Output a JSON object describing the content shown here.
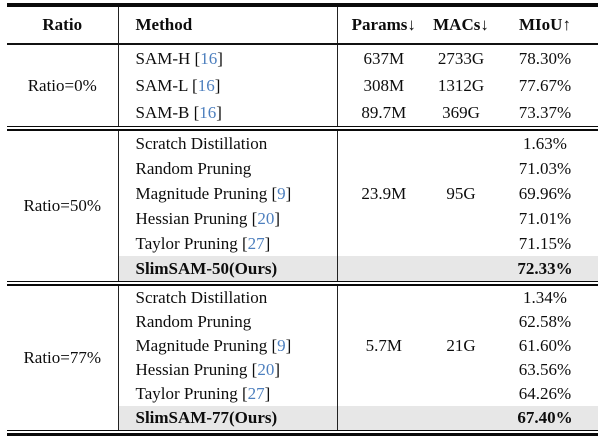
{
  "table": {
    "columns": [
      {
        "key": "ratio",
        "label": "Ratio"
      },
      {
        "key": "method",
        "label": "Method"
      },
      {
        "key": "params",
        "label": "Params↓"
      },
      {
        "key": "macs",
        "label": "MACs↓"
      },
      {
        "key": "miou",
        "label": "MIoU↑"
      }
    ],
    "cite_brackets": [
      "[",
      "]"
    ],
    "groups": [
      {
        "ratio": "Ratio=0%",
        "rows": [
          {
            "method": "SAM-H",
            "cite": "16",
            "params": "637M",
            "macs": "2733G",
            "miou": "78.30%",
            "ours": false
          },
          {
            "method": "SAM-L",
            "cite": "16",
            "params": "308M",
            "macs": "1312G",
            "miou": "77.67%",
            "ours": false
          },
          {
            "method": "SAM-B",
            "cite": "16",
            "params": "89.7M",
            "macs": "369G",
            "miou": "73.37%",
            "ours": false
          }
        ]
      },
      {
        "ratio": "Ratio=50%",
        "rows": [
          {
            "method": "Scratch Distillation",
            "cite": null,
            "params": "",
            "macs": "",
            "miou": "1.63%",
            "ours": false
          },
          {
            "method": "Random Pruning",
            "cite": null,
            "params": "",
            "macs": "",
            "miou": "71.03%",
            "ours": false
          },
          {
            "method": "Magnitude Pruning",
            "cite": "9",
            "params": "23.9M",
            "macs": "95G",
            "miou": "69.96%",
            "ours": false
          },
          {
            "method": "Hessian Pruning",
            "cite": "20",
            "params": "",
            "macs": "",
            "miou": "71.01%",
            "ours": false
          },
          {
            "method": "Taylor Pruning",
            "cite": "27",
            "params": "",
            "macs": "",
            "miou": "71.15%",
            "ours": false
          },
          {
            "method": "SlimSAM-50(Ours)",
            "cite": null,
            "params": "",
            "macs": "",
            "miou": "72.33%",
            "ours": true
          }
        ]
      },
      {
        "ratio": "Ratio=77%",
        "rows": [
          {
            "method": "Scratch Distillation",
            "cite": null,
            "params": "",
            "macs": "",
            "miou": "1.34%",
            "ours": false
          },
          {
            "method": "Random Pruning",
            "cite": null,
            "params": "",
            "macs": "",
            "miou": "62.58%",
            "ours": false
          },
          {
            "method": "Magnitude Pruning",
            "cite": "9",
            "params": "5.7M",
            "macs": "21G",
            "miou": "61.60%",
            "ours": false
          },
          {
            "method": "Hessian Pruning",
            "cite": "20",
            "params": "",
            "macs": "",
            "miou": "63.56%",
            "ours": false
          },
          {
            "method": "Taylor Pruning",
            "cite": "27",
            "params": "",
            "macs": "",
            "miou": "64.26%",
            "ours": false
          },
          {
            "method": "SlimSAM-77(Ours)",
            "cite": null,
            "params": "",
            "macs": "",
            "miou": "67.40%",
            "ours": true
          }
        ]
      }
    ],
    "colors": {
      "cite_blue": "#4d7fbe",
      "highlight": "#e7e7e7",
      "rule": "#0a0a0a"
    }
  }
}
